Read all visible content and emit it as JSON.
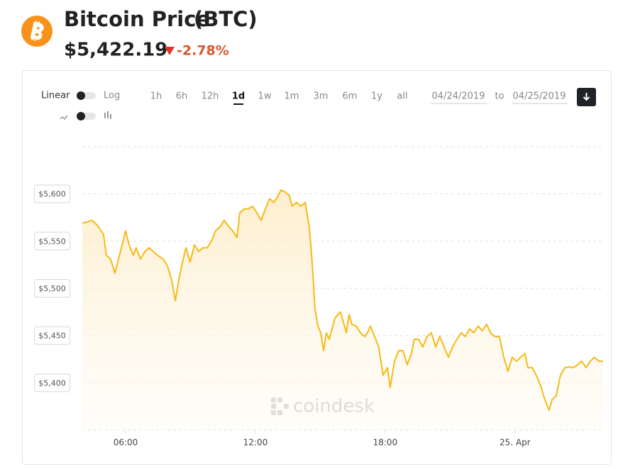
{
  "header": {
    "title": "Bitcoin Price",
    "ticker": "(BTC)",
    "price": "$5,422.19",
    "change": "-2.78%"
  },
  "controls": {
    "scales": [
      "Linear",
      "Log"
    ],
    "ranges": [
      "1h",
      "6h",
      "12h",
      "1d",
      "1w",
      "1m",
      "3m",
      "6m",
      "1y",
      "all"
    ],
    "active_range": "1d",
    "date_from": "04/24/2019",
    "date_separator": "to",
    "date_to": "04/25/2019"
  },
  "watermark": "coindesk",
  "chart_data": {
    "type": "line",
    "color": "#f6b916",
    "x": [
      4.0,
      4.2,
      4.46,
      4.72,
      4.98,
      5.11,
      5.31,
      5.51,
      5.64,
      5.84,
      6.0,
      6.16,
      6.36,
      6.49,
      6.69,
      6.89,
      7.08,
      7.28,
      7.48,
      7.74,
      7.93,
      8.13,
      8.3,
      8.46,
      8.66,
      8.79,
      8.98,
      9.18,
      9.38,
      9.57,
      9.77,
      9.97,
      10.16,
      10.36,
      10.56,
      10.75,
      10.95,
      11.15,
      11.28,
      11.48,
      11.67,
      11.87,
      12.07,
      12.26,
      12.46,
      12.66,
      12.85,
      13.05,
      13.18,
      13.38,
      13.57,
      13.7,
      13.9,
      14.1,
      14.3,
      14.49,
      14.62,
      14.75,
      14.89,
      15.02,
      15.15,
      15.28,
      15.41,
      15.54,
      15.67,
      15.8,
      15.93,
      16.07,
      16.2,
      16.33,
      16.46,
      16.66,
      16.85,
      17.05,
      17.18,
      17.31,
      17.51,
      17.7,
      17.9,
      18.1,
      18.23,
      18.43,
      18.62,
      18.82,
      19.02,
      19.21,
      19.34,
      19.54,
      19.74,
      19.93,
      20.13,
      20.33,
      20.52,
      20.72,
      20.92,
      21.11,
      21.31,
      21.51,
      21.7,
      21.9,
      22.1,
      22.3,
      22.49,
      22.69,
      22.89,
      23.08,
      23.28,
      23.48,
      23.67,
      23.87,
      24.07,
      24.26,
      24.46,
      24.59,
      24.79,
      24.98,
      25.18,
      25.38,
      25.57,
      25.71,
      25.9,
      26.1,
      26.3,
      26.49,
      26.69,
      26.89,
      27.08,
      27.28,
      27.48,
      27.67,
      27.87,
      28.07
    ],
    "values": [
      5569,
      5570,
      5572,
      5566,
      5557,
      5535,
      5531,
      5516,
      5528,
      5546,
      5561,
      5546,
      5535,
      5543,
      5531,
      5539,
      5543,
      5539,
      5535,
      5531,
      5524,
      5509,
      5487,
      5509,
      5531,
      5543,
      5528,
      5546,
      5539,
      5543,
      5543,
      5550,
      5561,
      5565,
      5572,
      5566,
      5561,
      5554,
      5580,
      5584,
      5584,
      5587,
      5580,
      5572,
      5584,
      5595,
      5591,
      5598,
      5604,
      5602,
      5598,
      5587,
      5591,
      5587,
      5591,
      5565,
      5528,
      5479,
      5460,
      5453,
      5434,
      5453,
      5446,
      5457,
      5468,
      5472,
      5475,
      5464,
      5453,
      5472,
      5462,
      5460,
      5453,
      5449,
      5453,
      5460,
      5449,
      5438,
      5408,
      5416,
      5395,
      5423,
      5434,
      5434,
      5419,
      5431,
      5446,
      5446,
      5438,
      5449,
      5453,
      5438,
      5449,
      5438,
      5427,
      5438,
      5446,
      5453,
      5449,
      5457,
      5453,
      5460,
      5455,
      5462,
      5452,
      5449,
      5449,
      5427,
      5412,
      5427,
      5423,
      5427,
      5431,
      5416,
      5416,
      5408,
      5397,
      5382,
      5371,
      5382,
      5386,
      5408,
      5416,
      5417,
      5416,
      5419,
      5423,
      5416,
      5423,
      5427,
      5423,
      5423
    ],
    "xlim": [
      4,
      28.07
    ],
    "xticks": [
      {
        "value": 6,
        "label": "06:00"
      },
      {
        "value": 12,
        "label": "12:00"
      },
      {
        "value": 18,
        "label": "18:00"
      },
      {
        "value": 24,
        "label": "25. Apr"
      }
    ],
    "ylim": [
      5350,
      5650
    ],
    "yticks": [
      {
        "value": 5400,
        "label": "$5,400"
      },
      {
        "value": 5450,
        "label": "$5,450"
      },
      {
        "value": 5500,
        "label": "$5,500"
      },
      {
        "value": 5550,
        "label": "$5,550"
      },
      {
        "value": 5600,
        "label": "$5,600"
      }
    ],
    "grid": true
  }
}
